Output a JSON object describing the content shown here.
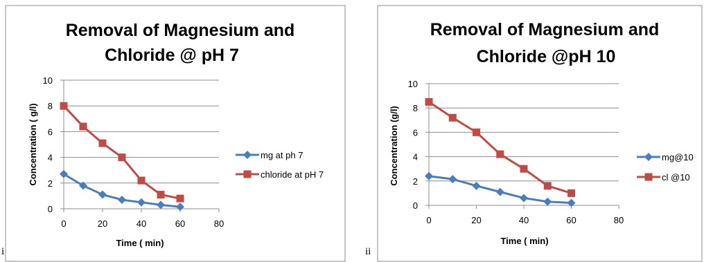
{
  "panel_labels": [
    "i",
    "ii"
  ],
  "chart_data": [
    {
      "type": "line",
      "title_lines": [
        "Removal of Magnesium and",
        "Chloride @ pH 7"
      ],
      "xlabel": "Time ( min)",
      "ylabel": "Concentration ( g/l)",
      "xlim": [
        0,
        80
      ],
      "ylim": [
        0,
        10
      ],
      "xticks": [
        0,
        20,
        40,
        60,
        80
      ],
      "yticks": [
        0,
        2,
        4,
        6,
        8,
        10
      ],
      "grid": true,
      "legend_position": "right",
      "x": [
        0,
        10,
        20,
        30,
        40,
        50,
        60
      ],
      "series": [
        {
          "name": "mg at ph 7",
          "color": "#4a7ebb",
          "marker": "diamond",
          "values": [
            2.7,
            1.8,
            1.1,
            0.7,
            0.5,
            0.3,
            0.15
          ]
        },
        {
          "name": "chloride at pH 7",
          "color": "#be4b48",
          "marker": "square",
          "values": [
            8.0,
            6.4,
            5.1,
            4.0,
            2.2,
            1.1,
            0.8
          ]
        }
      ]
    },
    {
      "type": "line",
      "title_lines": [
        "Removal of Magnesium and",
        "Chloride @pH 10"
      ],
      "xlabel": "Time ( min)",
      "ylabel": "Concentration (g/l)",
      "xlim": [
        0,
        80
      ],
      "ylim": [
        0,
        10
      ],
      "xticks": [
        0,
        20,
        40,
        60,
        80
      ],
      "yticks": [
        0,
        2,
        4,
        6,
        8,
        10
      ],
      "grid": true,
      "legend_position": "right",
      "x": [
        0,
        10,
        20,
        30,
        40,
        50,
        60
      ],
      "series": [
        {
          "name": "mg@10",
          "color": "#4a7ebb",
          "marker": "diamond",
          "values": [
            2.4,
            2.15,
            1.6,
            1.1,
            0.6,
            0.3,
            0.2
          ]
        },
        {
          "name": "cl @10",
          "color": "#be4b48",
          "marker": "square",
          "values": [
            8.5,
            7.2,
            6.0,
            4.2,
            3.0,
            1.6,
            1.0
          ]
        }
      ]
    }
  ]
}
